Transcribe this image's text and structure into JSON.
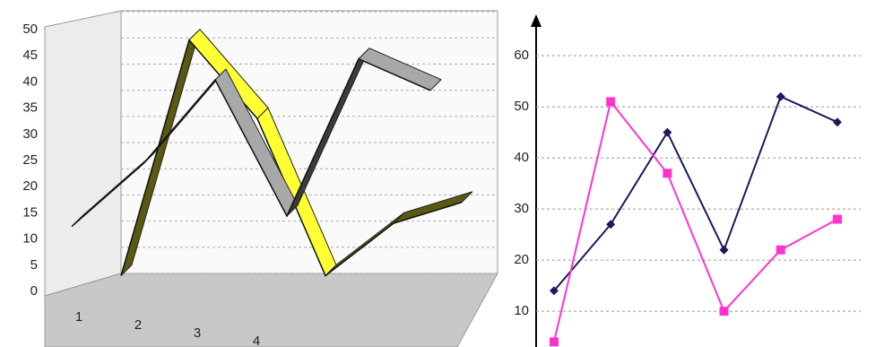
{
  "chart_data": [
    {
      "type": "line3d",
      "categories": [
        "1",
        "2",
        "3",
        "4",
        null,
        null
      ],
      "ylim": [
        0,
        50
      ],
      "yticks": [
        0,
        5,
        10,
        15,
        20,
        25,
        30,
        35,
        40,
        45,
        50
      ],
      "grid": true,
      "series": [
        {
          "color": "#ffff33",
          "values": [
            3,
            48,
            33,
            3,
            13,
            17
          ]
        },
        {
          "color": "#a8a8a8",
          "values": [
            10,
            22,
            38,
            12,
            42,
            36
          ]
        }
      ]
    },
    {
      "type": "line",
      "categories": [
        null,
        null,
        null,
        null,
        null,
        null
      ],
      "ylim": [
        3,
        63
      ],
      "yticks": [
        10,
        20,
        30,
        40,
        50,
        60
      ],
      "grid": true,
      "series": [
        {
          "color": "#1a1a5e",
          "values": [
            14,
            27,
            45,
            22,
            52,
            47
          ]
        },
        {
          "color": "#ff33cc",
          "values": [
            4,
            51,
            37,
            10,
            22,
            28
          ]
        }
      ]
    }
  ]
}
